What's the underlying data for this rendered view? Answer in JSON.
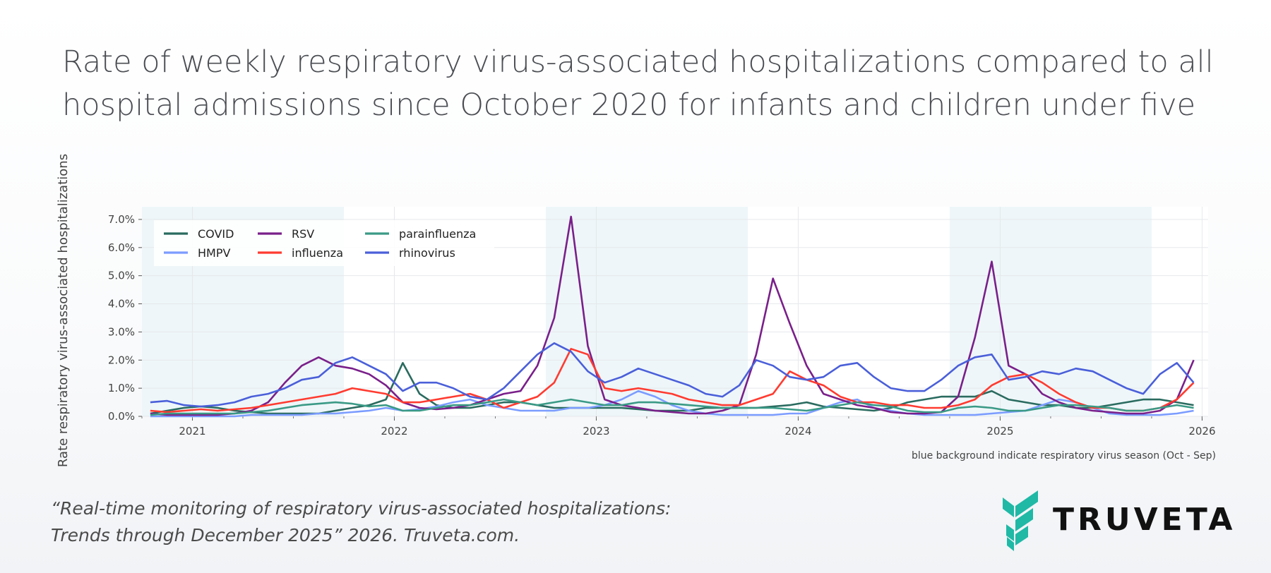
{
  "title": "Rate of weekly respiratory virus-associated hospitalizations compared to all hospital admissions since October 2020 for infants and children under five",
  "citation": {
    "line1": "“Real-time monitoring of respiratory virus-associated hospitalizations:",
    "line2": "Trends through December 2025” 2026. Truveta.com."
  },
  "logo": {
    "text": "TRUVETA",
    "color": "#1fb9a6"
  },
  "chart_data": {
    "type": "line",
    "title": "",
    "xlabel": "",
    "ylabel": "Rate respiratory virus-associated hospitalizations",
    "note": "blue background indicate respiratory virus season (Oct - Sep)",
    "xlim": [
      "2020-10",
      "2026-01"
    ],
    "ylim": [
      0,
      7.45
    ],
    "grid": true,
    "legend": "top-left",
    "x_ticks": [
      "2021",
      "2022",
      "2023",
      "2024",
      "2025",
      "2026"
    ],
    "y_ticks": [
      "0.0%",
      "1.0%",
      "2.0%",
      "3.0%",
      "4.0%",
      "5.0%",
      "6.0%",
      "7.0%"
    ],
    "shaded_seasons": [
      [
        "2020-10",
        "2021-09"
      ],
      [
        "2022-10",
        "2023-09"
      ],
      [
        "2024-10",
        "2025-09"
      ]
    ],
    "shade_color": "#eef6f9",
    "x": [
      "2020-10",
      "2020-11",
      "2020-12",
      "2021-01",
      "2021-02",
      "2021-03",
      "2021-04",
      "2021-05",
      "2021-06",
      "2021-07",
      "2021-08",
      "2021-09",
      "2021-10",
      "2021-11",
      "2021-12",
      "2022-01",
      "2022-02",
      "2022-03",
      "2022-04",
      "2022-05",
      "2022-06",
      "2022-07",
      "2022-08",
      "2022-09",
      "2022-10",
      "2022-11",
      "2022-12",
      "2023-01",
      "2023-02",
      "2023-03",
      "2023-04",
      "2023-05",
      "2023-06",
      "2023-07",
      "2023-08",
      "2023-09",
      "2023-10",
      "2023-11",
      "2023-12",
      "2024-01",
      "2024-02",
      "2024-03",
      "2024-04",
      "2024-05",
      "2024-06",
      "2024-07",
      "2024-08",
      "2024-09",
      "2024-10",
      "2024-11",
      "2024-12",
      "2025-01",
      "2025-02",
      "2025-03",
      "2025-04",
      "2025-05",
      "2025-06",
      "2025-07",
      "2025-08",
      "2025-09",
      "2025-10",
      "2025-11",
      "2025-12"
    ],
    "series": [
      {
        "name": "COVID",
        "color": "#2a6b5f",
        "values": [
          0.1,
          0.2,
          0.3,
          0.35,
          0.3,
          0.2,
          0.15,
          0.1,
          0.1,
          0.1,
          0.1,
          0.2,
          0.3,
          0.4,
          0.6,
          1.9,
          0.8,
          0.4,
          0.3,
          0.3,
          0.4,
          0.5,
          0.5,
          0.4,
          0.3,
          0.3,
          0.3,
          0.3,
          0.3,
          0.25,
          0.2,
          0.2,
          0.2,
          0.3,
          0.3,
          0.3,
          0.3,
          0.35,
          0.4,
          0.5,
          0.35,
          0.3,
          0.25,
          0.2,
          0.3,
          0.5,
          0.6,
          0.7,
          0.7,
          0.7,
          0.9,
          0.6,
          0.5,
          0.4,
          0.4,
          0.3,
          0.3,
          0.4,
          0.5,
          0.6,
          0.6,
          0.5,
          0.4
        ]
      },
      {
        "name": "HMPV",
        "color": "#7b9cff",
        "values": [
          0,
          0,
          0,
          0,
          0,
          0,
          0.05,
          0.05,
          0.05,
          0.05,
          0.1,
          0.1,
          0.15,
          0.2,
          0.3,
          0.2,
          0.25,
          0.35,
          0.5,
          0.6,
          0.4,
          0.3,
          0.2,
          0.2,
          0.2,
          0.3,
          0.3,
          0.4,
          0.6,
          0.9,
          0.7,
          0.4,
          0.2,
          0.1,
          0.05,
          0.05,
          0.05,
          0.05,
          0.1,
          0.1,
          0.3,
          0.5,
          0.6,
          0.3,
          0.2,
          0.1,
          0.05,
          0.05,
          0.05,
          0.05,
          0.1,
          0.15,
          0.2,
          0.4,
          0.6,
          0.5,
          0.3,
          0.1,
          0.05,
          0.05,
          0.05,
          0.1,
          0.2
        ]
      },
      {
        "name": "RSV",
        "color": "#7a1f8a",
        "values": [
          0.1,
          0.05,
          0.05,
          0.05,
          0.05,
          0.1,
          0.2,
          0.5,
          1.2,
          1.8,
          2.1,
          1.8,
          1.7,
          1.5,
          1.1,
          0.5,
          0.3,
          0.25,
          0.3,
          0.4,
          0.6,
          0.8,
          0.9,
          1.8,
          3.5,
          7.1,
          2.5,
          0.6,
          0.4,
          0.3,
          0.2,
          0.15,
          0.1,
          0.1,
          0.2,
          0.4,
          2.2,
          4.9,
          3.3,
          1.8,
          0.8,
          0.6,
          0.4,
          0.3,
          0.15,
          0.1,
          0.1,
          0.15,
          0.7,
          2.8,
          5.5,
          1.8,
          1.5,
          0.8,
          0.5,
          0.3,
          0.2,
          0.15,
          0.1,
          0.1,
          0.2,
          0.6,
          2.0
        ]
      },
      {
        "name": "influenza",
        "color": "#ff3b30",
        "values": [
          0.2,
          0.15,
          0.2,
          0.25,
          0.2,
          0.25,
          0.3,
          0.4,
          0.5,
          0.6,
          0.7,
          0.8,
          1.0,
          0.9,
          0.8,
          0.5,
          0.5,
          0.6,
          0.7,
          0.8,
          0.6,
          0.3,
          0.5,
          0.7,
          1.2,
          2.4,
          2.2,
          1.0,
          0.9,
          1.0,
          0.9,
          0.8,
          0.6,
          0.5,
          0.4,
          0.4,
          0.6,
          0.8,
          1.6,
          1.3,
          1.1,
          0.7,
          0.5,
          0.5,
          0.4,
          0.4,
          0.3,
          0.3,
          0.4,
          0.6,
          1.1,
          1.4,
          1.5,
          1.2,
          0.8,
          0.5,
          0.3,
          0.3,
          0.2,
          0.2,
          0.3,
          0.6,
          1.2
        ]
      },
      {
        "name": "parainfluenza",
        "color": "#3a9a86",
        "values": [
          0.05,
          0.1,
          0.1,
          0.1,
          0.1,
          0.1,
          0.15,
          0.2,
          0.3,
          0.4,
          0.45,
          0.5,
          0.45,
          0.35,
          0.4,
          0.2,
          0.2,
          0.3,
          0.4,
          0.4,
          0.5,
          0.6,
          0.5,
          0.4,
          0.5,
          0.6,
          0.5,
          0.4,
          0.4,
          0.5,
          0.5,
          0.45,
          0.4,
          0.35,
          0.3,
          0.3,
          0.3,
          0.3,
          0.25,
          0.2,
          0.3,
          0.4,
          0.5,
          0.4,
          0.35,
          0.2,
          0.15,
          0.15,
          0.3,
          0.35,
          0.3,
          0.2,
          0.2,
          0.3,
          0.4,
          0.4,
          0.35,
          0.3,
          0.2,
          0.2,
          0.3,
          0.4,
          0.3
        ]
      },
      {
        "name": "rhinovirus",
        "color": "#4a5fd9",
        "values": [
          0.5,
          0.55,
          0.4,
          0.35,
          0.4,
          0.5,
          0.7,
          0.8,
          1.0,
          1.3,
          1.4,
          1.9,
          2.1,
          1.8,
          1.5,
          0.9,
          1.2,
          1.2,
          1.0,
          0.7,
          0.6,
          1.0,
          1.6,
          2.2,
          2.6,
          2.3,
          1.6,
          1.2,
          1.4,
          1.7,
          1.5,
          1.3,
          1.1,
          0.8,
          0.7,
          1.1,
          2.0,
          1.8,
          1.4,
          1.3,
          1.4,
          1.8,
          1.9,
          1.4,
          1.0,
          0.9,
          0.9,
          1.3,
          1.8,
          2.1,
          2.2,
          1.3,
          1.4,
          1.6,
          1.5,
          1.7,
          1.6,
          1.3,
          1.0,
          0.8,
          1.5,
          1.9,
          1.2
        ]
      }
    ]
  }
}
